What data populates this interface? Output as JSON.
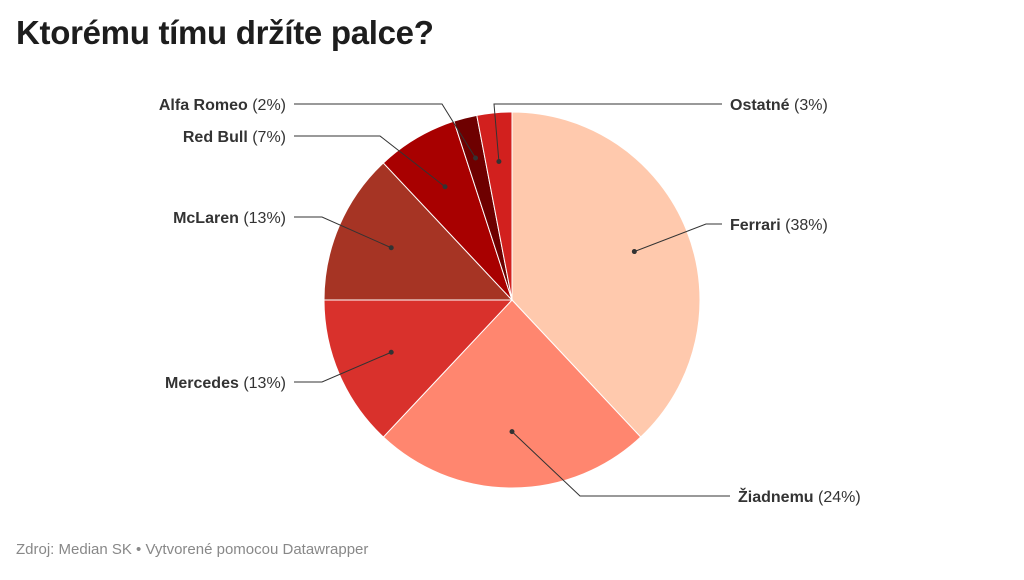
{
  "title": "Ktorému tímu držíte palce?",
  "footer": "Zdroj: Median SK • Vytvorené pomocou Datawrapper",
  "chart_data": {
    "type": "pie",
    "title": "Ktorému tímu držíte palce?",
    "start_angle_deg": 0,
    "direction": "clockwise",
    "slices": [
      {
        "name": "Ferrari",
        "value": 38,
        "label": "(38%)",
        "color": "#ffc9ad"
      },
      {
        "name": "Žiadnemu",
        "value": 24,
        "label": "(24%)",
        "color": "#ff866f"
      },
      {
        "name": "Mercedes",
        "value": 13,
        "label": "(13%)",
        "color": "#d9312c"
      },
      {
        "name": "McLaren",
        "value": 13,
        "label": "(13%)",
        "color": "#a63424"
      },
      {
        "name": "Red Bull",
        "value": 7,
        "label": "(7%)",
        "color": "#a80000"
      },
      {
        "name": "Alfa Romeo",
        "value": 2,
        "label": "(2%)",
        "color": "#6e0000"
      },
      {
        "name": "Ostatné",
        "value": 3,
        "label": "(3%)",
        "color": "#d2201e"
      }
    ]
  }
}
